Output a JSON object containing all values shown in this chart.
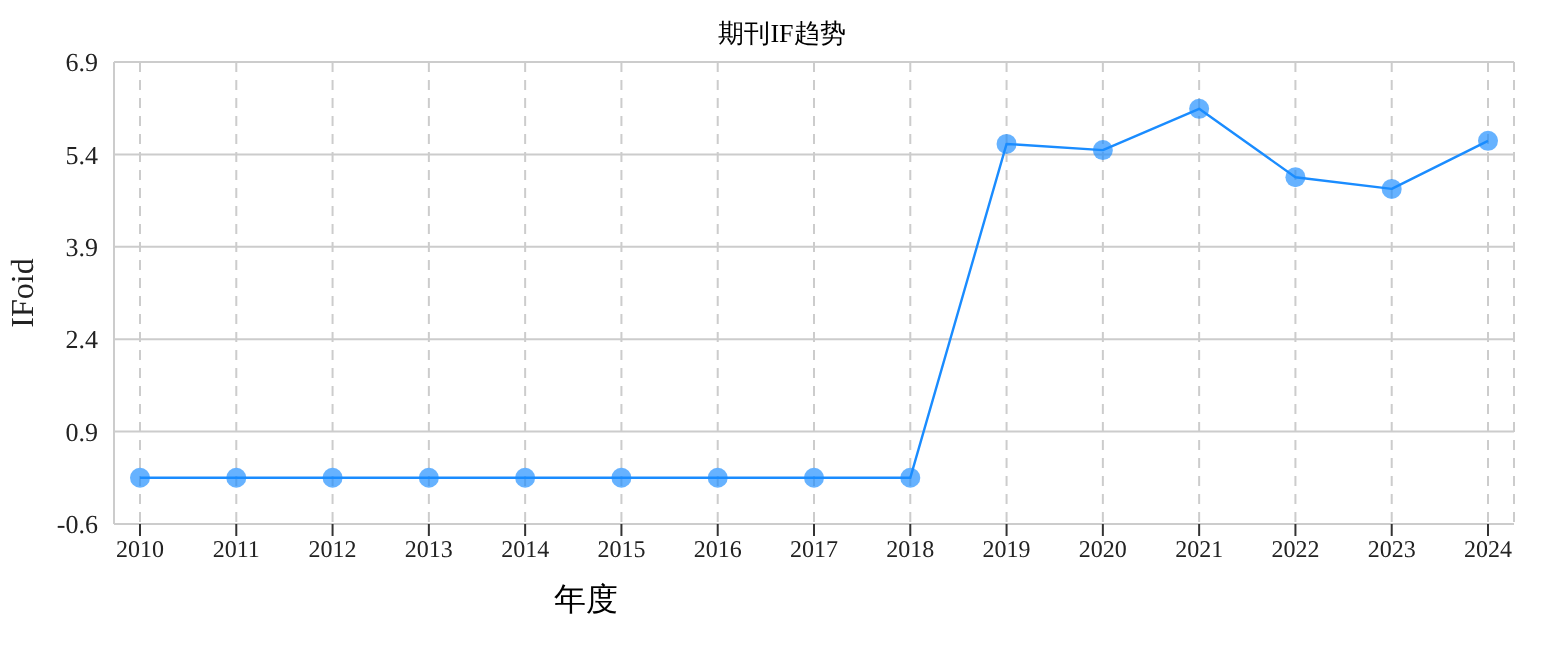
{
  "chart_data": {
    "type": "line",
    "title": "期刊IF趋势",
    "xlabel": "年度",
    "ylabel": "IFoid",
    "categories": [
      "2010",
      "2011",
      "2012",
      "2013",
      "2014",
      "2015",
      "2016",
      "2017",
      "2018",
      "2019",
      "2020",
      "2021",
      "2022",
      "2023",
      "2024"
    ],
    "series": [
      {
        "color": "#1a8cff",
        "values": [
          0.15,
          0.15,
          0.15,
          0.15,
          0.15,
          0.15,
          0.15,
          0.15,
          0.15,
          5.57,
          5.47,
          6.14,
          5.03,
          4.84,
          5.62
        ]
      }
    ],
    "ylim": [
      -0.6,
      6.9
    ],
    "yticks": [
      -0.6,
      0.9,
      2.4,
      3.9,
      5.4,
      6.9
    ],
    "grid": true,
    "marker": "circle",
    "line_style": "solid",
    "legend": false
  }
}
